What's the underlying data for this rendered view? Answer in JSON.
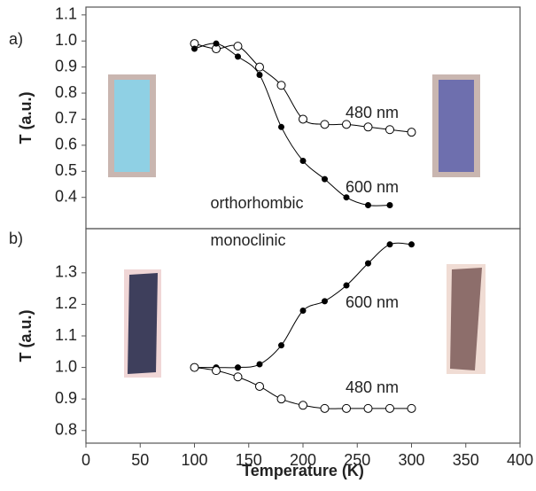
{
  "chart_data": [
    {
      "type": "line",
      "panel_label": "a)",
      "ylabel": "T (a.u.)",
      "annotation": "orthorhombic",
      "xlim": [
        0,
        400
      ],
      "ylim": [
        0.28,
        1.13
      ],
      "yticks": [
        0.4,
        0.5,
        0.6,
        0.7,
        0.8,
        0.9,
        {
          "value": 1.0,
          "label": "1.0"
        },
        1.1
      ],
      "series": [
        {
          "name": "480 nm",
          "color": "#000000",
          "marker": "open",
          "x": [
            100,
            120,
            140,
            160,
            180,
            200,
            220,
            240,
            260,
            280,
            300
          ],
          "values": [
            0.99,
            0.97,
            0.98,
            0.9,
            0.83,
            0.7,
            0.68,
            0.68,
            0.67,
            0.66,
            0.65
          ]
        },
        {
          "name": "600 nm",
          "color": "#000000",
          "marker": "filled",
          "x": [
            100,
            120,
            140,
            160,
            180,
            200,
            220,
            240,
            260,
            280
          ],
          "values": [
            0.97,
            0.99,
            0.94,
            0.87,
            0.67,
            0.54,
            0.47,
            0.4,
            0.37,
            0.37
          ]
        }
      ]
    },
    {
      "type": "line",
      "panel_label": "b)",
      "ylabel": "T (a.u.)",
      "xlabel": "Temperature (K)",
      "annotation": "monoclinic",
      "xlim": [
        0,
        400
      ],
      "xticks": [
        0,
        50,
        100,
        150,
        200,
        250,
        300,
        350,
        400
      ],
      "ylim": [
        0.76,
        1.44
      ],
      "yticks": [
        0.8,
        0.9,
        {
          "value": 1.0,
          "label": "1.0"
        },
        1.1,
        1.2,
        1.3
      ],
      "series": [
        {
          "name": "600 nm",
          "color": "#000000",
          "marker": "filled",
          "x": [
            100,
            120,
            140,
            160,
            180,
            200,
            220,
            240,
            260,
            280,
            300
          ],
          "values": [
            1.0,
            1.0,
            1.0,
            1.01,
            1.07,
            1.18,
            1.21,
            1.26,
            1.33,
            1.39,
            1.39
          ]
        },
        {
          "name": "480 nm",
          "color": "#000000",
          "marker": "open",
          "x": [
            100,
            120,
            140,
            160,
            180,
            200,
            220,
            240,
            260,
            280,
            300
          ],
          "values": [
            1.0,
            0.99,
            0.97,
            0.94,
            0.9,
            0.88,
            0.87,
            0.87,
            0.87,
            0.87,
            0.87
          ]
        }
      ]
    }
  ]
}
